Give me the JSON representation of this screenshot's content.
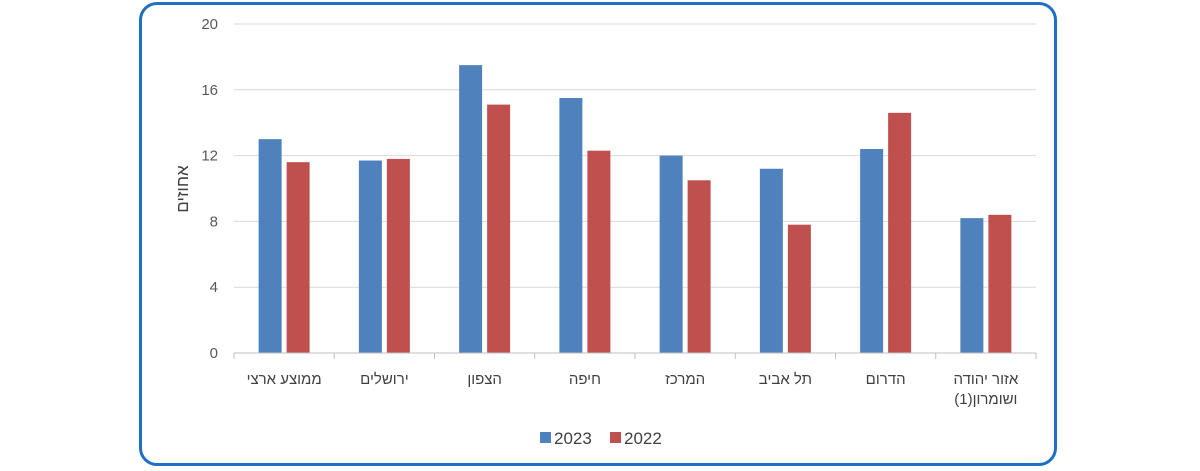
{
  "chart_data": {
    "type": "bar",
    "ylabel": "אחוזים",
    "ylim": [
      0,
      20
    ],
    "yticks": [
      "0",
      "4",
      "8",
      "12",
      "16",
      "20"
    ],
    "categories": [
      [
        "ממוצע ארצי"
      ],
      [
        "ירושלים"
      ],
      [
        "הצפון"
      ],
      [
        "חיפה"
      ],
      [
        "המרכז"
      ],
      [
        "תל אביב"
      ],
      [
        "הדרום"
      ],
      [
        "אזור יהודה",
        "ושומרון(1)"
      ]
    ],
    "series": [
      {
        "name": "2023",
        "color": "#4f81bd",
        "values": [
          13.0,
          11.7,
          17.5,
          15.5,
          12.0,
          11.2,
          12.4,
          8.2
        ]
      },
      {
        "name": "2022",
        "color": "#c0504d",
        "values": [
          11.6,
          11.8,
          15.1,
          12.3,
          10.5,
          7.8,
          14.6,
          8.4
        ]
      }
    ],
    "grid": true,
    "legend": "bottom"
  }
}
